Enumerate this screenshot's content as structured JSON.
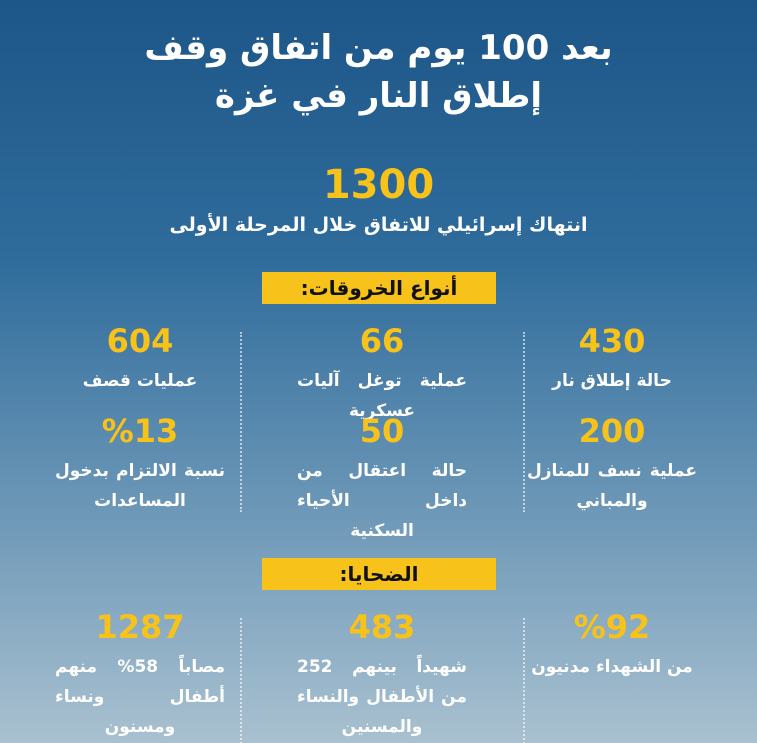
{
  "title": [
    "بعد 100 يوم من اتفاق وقف",
    "إطلاق النار في غزة"
  ],
  "headline": {
    "value": "1300",
    "label": "انتهاك إسرائيلي للاتفاق خلال المرحلة الأولى"
  },
  "sections": [
    {
      "heading": "أنواع الخروقات:",
      "items": [
        {
          "value": "430",
          "label": "حالة إطلاق نار"
        },
        {
          "value": "66",
          "label": "عملية توغل آليات عسكرية"
        },
        {
          "value": "604",
          "label": "عمليات قصف"
        },
        {
          "value": "200",
          "label": "عملية نسف للمنازل والمباني"
        },
        {
          "value": "50",
          "label": "حالة اعتقال من داخل الأحياء السكنية"
        },
        {
          "value": "%13",
          "label": "نسبة الالتزام بدخول المساعدات"
        }
      ]
    },
    {
      "heading": "الضحايا:",
      "items": [
        {
          "value": "%92",
          "label": "من الشهداء مدنيون"
        },
        {
          "value": "483",
          "label": "شهيداً بينهم 252 من الأطفال والنساء والمسنين"
        },
        {
          "value": "1287",
          "label": "مصاباً 58% منهم أطفال ونساء ومسنون"
        }
      ]
    }
  ]
}
